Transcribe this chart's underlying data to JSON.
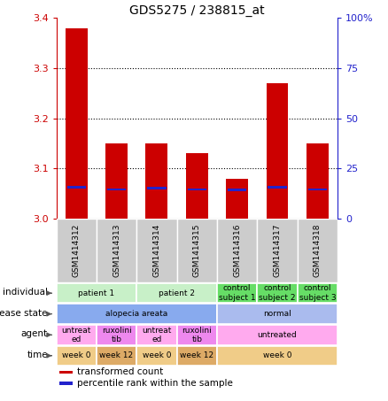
{
  "title": "GDS5275 / 238815_at",
  "samples": [
    "GSM1414312",
    "GSM1414313",
    "GSM1414314",
    "GSM1414315",
    "GSM1414316",
    "GSM1414317",
    "GSM1414318"
  ],
  "transformed_count": [
    3.38,
    3.15,
    3.15,
    3.13,
    3.08,
    3.27,
    3.15
  ],
  "percentile_y": [
    3.062,
    3.058,
    3.06,
    3.058,
    3.057,
    3.062,
    3.058
  ],
  "bar_base": 3.0,
  "ylim": [
    3.0,
    3.4
  ],
  "y2lim": [
    0,
    100
  ],
  "y_ticks": [
    3.0,
    3.1,
    3.2,
    3.3,
    3.4
  ],
  "y2_ticks": [
    0,
    25,
    50,
    75,
    100
  ],
  "y2_ticklabels": [
    "0",
    "25",
    "50",
    "75",
    "100%"
  ],
  "bar_color": "#cc0000",
  "percentile_color": "#2222cc",
  "bar_width": 0.55,
  "individual_row": {
    "label": "individual",
    "cells": [
      {
        "text": "patient 1",
        "span": [
          0,
          1
        ],
        "color": "#c8f0c8"
      },
      {
        "text": "patient 2",
        "span": [
          2,
          3
        ],
        "color": "#c8f0c8"
      },
      {
        "text": "control\nsubject 1",
        "span": [
          4,
          4
        ],
        "color": "#66dd66"
      },
      {
        "text": "control\nsubject 2",
        "span": [
          5,
          5
        ],
        "color": "#66dd66"
      },
      {
        "text": "control\nsubject 3",
        "span": [
          6,
          6
        ],
        "color": "#66dd66"
      }
    ]
  },
  "disease_state_row": {
    "label": "disease state",
    "cells": [
      {
        "text": "alopecia areata",
        "span": [
          0,
          3
        ],
        "color": "#88aaee"
      },
      {
        "text": "normal",
        "span": [
          4,
          6
        ],
        "color": "#aabbee"
      }
    ]
  },
  "agent_row": {
    "label": "agent",
    "cells": [
      {
        "text": "untreat\ned",
        "span": [
          0,
          0
        ],
        "color": "#ffaaee"
      },
      {
        "text": "ruxolini\ntib",
        "span": [
          1,
          1
        ],
        "color": "#ee88ee"
      },
      {
        "text": "untreat\ned",
        "span": [
          2,
          2
        ],
        "color": "#ffaaee"
      },
      {
        "text": "ruxolini\ntib",
        "span": [
          3,
          3
        ],
        "color": "#ee88ee"
      },
      {
        "text": "untreated",
        "span": [
          4,
          6
        ],
        "color": "#ffaaee"
      }
    ]
  },
  "time_row": {
    "label": "time",
    "cells": [
      {
        "text": "week 0",
        "span": [
          0,
          0
        ],
        "color": "#f0cc88"
      },
      {
        "text": "week 12",
        "span": [
          1,
          1
        ],
        "color": "#ddaa66"
      },
      {
        "text": "week 0",
        "span": [
          2,
          2
        ],
        "color": "#f0cc88"
      },
      {
        "text": "week 12",
        "span": [
          3,
          3
        ],
        "color": "#ddaa66"
      },
      {
        "text": "week 0",
        "span": [
          4,
          6
        ],
        "color": "#f0cc88"
      }
    ]
  },
  "legend_items": [
    {
      "color": "#cc0000",
      "label": "transformed count"
    },
    {
      "color": "#2222cc",
      "label": "percentile rank within the sample"
    }
  ],
  "sample_bg_color": "#cccccc",
  "left_axis_color": "#cc0000",
  "right_axis_color": "#2222cc"
}
